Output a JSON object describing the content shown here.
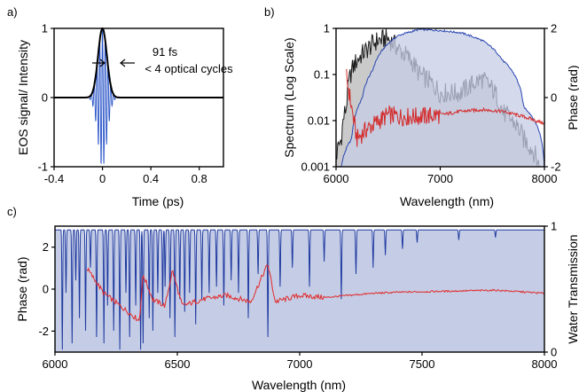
{
  "chart_data": [
    {
      "panel": "a)",
      "type": "line",
      "xlabel": "Time (ps)",
      "ylabel": "EOS signal/ Intensity",
      "xlim": [
        -0.4,
        1.0
      ],
      "ylim": [
        -1,
        1
      ],
      "xticks": [
        "-0.4",
        "0",
        "0.4",
        "0.8"
      ],
      "yticks": [
        "-1",
        "0",
        "1"
      ],
      "annotations": [
        "91 fs",
        "< 4 optical cycles"
      ],
      "series": [
        {
          "role": "EOS signal",
          "color": "#2a55c8",
          "carrier_period_ps": 0.0227,
          "envelope_fwhm_ps": 0.091,
          "peak": 1.0
        },
        {
          "role": "Intensity envelope",
          "color": "#000000",
          "x": [
            -0.4,
            -0.2,
            -0.1,
            -0.05,
            0,
            0.05,
            0.1,
            0.2,
            1.0
          ],
          "y": [
            0.0,
            0.01,
            0.12,
            0.55,
            1.0,
            0.55,
            0.12,
            0.01,
            0.0
          ]
        }
      ],
      "grid": false
    },
    {
      "panel": "b)",
      "type": "area",
      "xlabel": "Wavelength (nm)",
      "ylabel": "Spectrum (Log Scale)",
      "y2label": "Phase (rad)",
      "xlim": [
        6000,
        8000
      ],
      "ylim": [
        0.001,
        1
      ],
      "yscale": "log",
      "y2lim": [
        -2,
        2
      ],
      "xticks": [
        "6000",
        "7000",
        "8000"
      ],
      "yticks": [
        "0.001",
        "0.01",
        "0.1",
        "1"
      ],
      "y2ticks": [
        "-2",
        "0",
        "2"
      ],
      "series": [
        {
          "role": "Spectrum (blue, filled)",
          "color": "#2a46b0",
          "fill": "#c5cde6",
          "x": [
            6050,
            6150,
            6250,
            6350,
            6450,
            6600,
            6800,
            7000,
            7200,
            7400,
            7600,
            7800,
            8000
          ],
          "y": [
            0.001,
            0.004,
            0.03,
            0.12,
            0.35,
            0.7,
            0.95,
            0.9,
            0.8,
            0.55,
            0.2,
            0.02,
            0.001
          ]
        },
        {
          "role": "Spectrum (black, filled)",
          "color": "#1a1a1a",
          "fill": "#b8b8b8",
          "x": [
            6000,
            6050,
            6100,
            6150,
            6200,
            6300,
            6400,
            6500,
            6600,
            6800,
            7000,
            7200,
            7400,
            7600,
            7800,
            7950
          ],
          "y": [
            0.0015,
            0.004,
            0.02,
            0.12,
            0.2,
            0.35,
            0.55,
            0.6,
            0.35,
            0.1,
            0.04,
            0.04,
            0.08,
            0.015,
            0.004,
            0.001
          ]
        },
        {
          "role": "Phase",
          "color": "#d42a2a",
          "axis": "y2",
          "x": [
            6100,
            6150,
            6200,
            6300,
            6400,
            6500,
            6600,
            6800,
            7000,
            7200,
            7400,
            7600,
            7800,
            8000
          ],
          "y": [
            0.6,
            -0.3,
            -1.2,
            -0.9,
            -0.7,
            -0.5,
            -0.55,
            -0.55,
            -0.5,
            -0.4,
            -0.35,
            -0.4,
            -0.55,
            -0.75
          ]
        }
      ],
      "grid": false
    },
    {
      "panel": "c)",
      "type": "line",
      "xlabel": "Wavelength (nm)",
      "ylabel": "Phase (rad)",
      "y2label": "Water Transmission",
      "xlim": [
        6000,
        8000
      ],
      "ylim": [
        -3,
        3
      ],
      "y2lim": [
        0,
        1
      ],
      "xticks": [
        "6000",
        "6500",
        "7000",
        "7500",
        "8000"
      ],
      "yticks": [
        "-2",
        "0",
        "2"
      ],
      "y2ticks": [
        "0",
        "1"
      ],
      "series": [
        {
          "role": "Water Transmission",
          "color": "#1f3aa0",
          "fill": "#c5cde6",
          "axis": "y2",
          "absorption_lines_nm": [
            6030,
            6045,
            6070,
            6085,
            6100,
            6125,
            6145,
            6170,
            6200,
            6215,
            6240,
            6265,
            6290,
            6305,
            6330,
            6350,
            6360,
            6385,
            6400,
            6420,
            6440,
            6450,
            6470,
            6490,
            6510,
            6530,
            6550,
            6575,
            6600,
            6630,
            6660,
            6690,
            6720,
            6750,
            6790,
            6830,
            6870,
            6920,
            6970,
            7040,
            7100,
            7170,
            7230,
            7300,
            7350,
            7420,
            7480,
            7650,
            7800
          ],
          "line_depths": [
            0.95,
            0.5,
            0.9,
            0.4,
            0.7,
            0.8,
            0.3,
            0.85,
            0.9,
            0.6,
            0.8,
            0.95,
            0.5,
            0.85,
            0.6,
            0.95,
            0.9,
            0.7,
            0.8,
            0.5,
            0.6,
            0.45,
            0.7,
            0.85,
            0.55,
            0.65,
            0.5,
            0.75,
            0.55,
            0.5,
            0.45,
            0.6,
            0.4,
            0.5,
            0.7,
            0.35,
            0.85,
            0.45,
            0.3,
            0.45,
            0.25,
            0.55,
            0.35,
            0.3,
            0.2,
            0.15,
            0.1,
            0.08,
            0.06
          ]
        },
        {
          "role": "Phase",
          "color": "#e02a2a",
          "x": [
            6130,
            6200,
            6300,
            6345,
            6360,
            6400,
            6450,
            6480,
            6520,
            6600,
            6700,
            6800,
            6870,
            6900,
            7000,
            7100,
            7200,
            7300,
            7400,
            7600,
            7800,
            8000
          ],
          "y": [
            1.0,
            -0.2,
            -1.1,
            -1.5,
            0.7,
            -0.5,
            -0.8,
            0.9,
            -0.8,
            -0.5,
            -0.3,
            -0.6,
            1.2,
            -0.6,
            -0.3,
            -0.4,
            -0.3,
            -0.2,
            -0.15,
            -0.1,
            -0.05,
            -0.2
          ]
        }
      ],
      "grid": false
    }
  ]
}
